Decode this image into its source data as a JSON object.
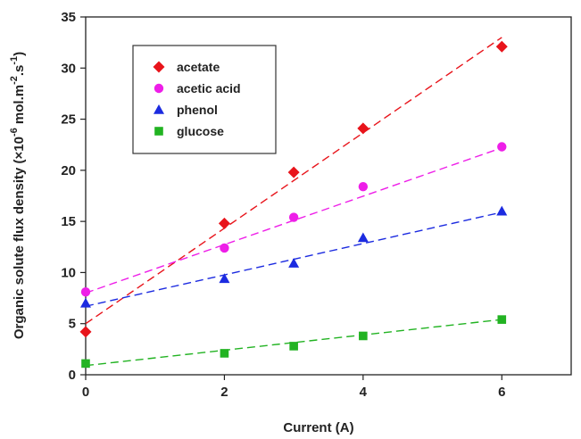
{
  "chart_data": {
    "type": "scatter",
    "xlabel": "Current (A)",
    "ylabel": {
      "prefix": "Organic solute flux density (×10",
      "exp1": "-6",
      "mid": " mol.m",
      "exp2": "-2",
      "mid2": ".s",
      "exp3": "-1",
      "suffix": ")"
    },
    "xlim": [
      0,
      7
    ],
    "ylim": [
      0,
      35
    ],
    "x_ticks": [
      0,
      2,
      4,
      6
    ],
    "y_ticks": [
      0,
      5,
      10,
      15,
      20,
      25,
      30,
      35
    ],
    "grid": false,
    "legend_position": "top-left",
    "x": [
      0,
      2,
      3,
      4,
      6
    ],
    "series": [
      {
        "name": "acetate",
        "marker": "diamond",
        "color": "#e8141b",
        "values": [
          4.2,
          14.8,
          19.8,
          24.1,
          32.1
        ],
        "trendline": {
          "x": [
            0,
            6
          ],
          "y": [
            5.0,
            33.0
          ]
        }
      },
      {
        "name": "acetic acid",
        "marker": "circle",
        "color": "#ee1ee8",
        "values": [
          8.1,
          12.4,
          15.4,
          18.4,
          22.3
        ],
        "trendline": {
          "x": [
            0,
            6
          ],
          "y": [
            8.0,
            22.2
          ]
        }
      },
      {
        "name": "phenol",
        "marker": "triangle",
        "color": "#1c2be0",
        "values": [
          7.0,
          9.4,
          10.9,
          13.4,
          16.0
        ],
        "trendline": {
          "x": [
            0,
            6
          ],
          "y": [
            6.7,
            15.9
          ]
        }
      },
      {
        "name": "glucose",
        "marker": "square",
        "color": "#22b322",
        "values": [
          1.1,
          2.1,
          2.8,
          3.8,
          5.4
        ],
        "trendline": {
          "x": [
            0,
            6
          ],
          "y": [
            0.9,
            5.4
          ]
        }
      }
    ]
  }
}
